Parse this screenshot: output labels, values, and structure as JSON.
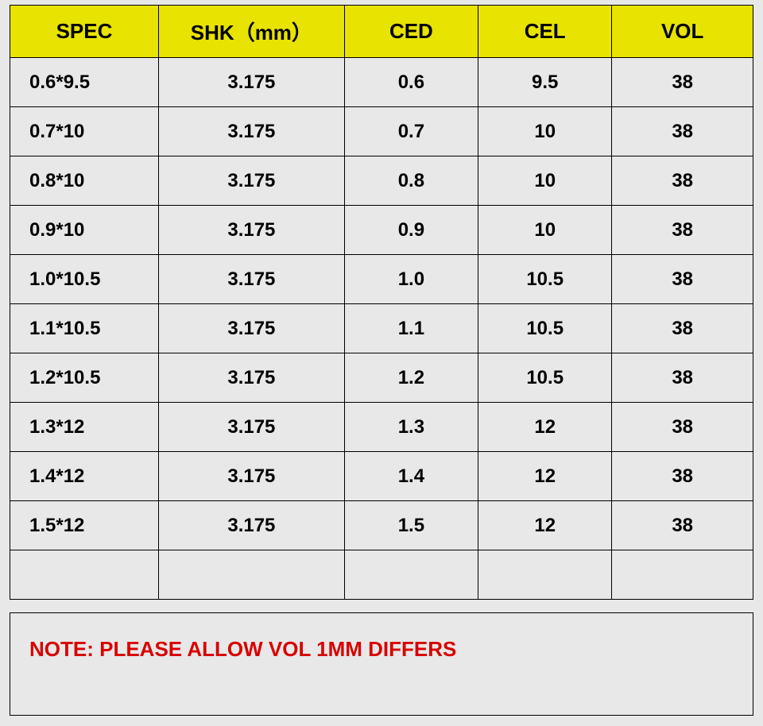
{
  "table": {
    "type": "table",
    "header_bg": "#e8e300",
    "body_bg": "#e8e8e8",
    "border_color": "#000000",
    "header_fontsize": 26,
    "cell_fontsize": 24,
    "font_weight": "bold",
    "columns": [
      "SPEC",
      "SHK（mm）",
      "CED",
      "CEL",
      "VOL"
    ],
    "column_widths_pct": [
      20,
      25,
      18,
      18,
      19
    ],
    "rows": [
      [
        "0.6*9.5",
        "3.175",
        "0.6",
        "9.5",
        "38"
      ],
      [
        "0.7*10",
        "3.175",
        "0.7",
        "10",
        "38"
      ],
      [
        "0.8*10",
        "3.175",
        "0.8",
        "10",
        "38"
      ],
      [
        "0.9*10",
        "3.175",
        "0.9",
        "10",
        "38"
      ],
      [
        "1.0*10.5",
        "3.175",
        "1.0",
        "10.5",
        "38"
      ],
      [
        "1.1*10.5",
        "3.175",
        "1.1",
        "10.5",
        "38"
      ],
      [
        "1.2*10.5",
        "3.175",
        "1.2",
        "10.5",
        "38"
      ],
      [
        "1.3*12",
        "3.175",
        "1.3",
        "12",
        "38"
      ],
      [
        "1.4*12",
        "3.175",
        "1.4",
        "12",
        "38"
      ],
      [
        "1.5*12",
        "3.175",
        "1.5",
        "12",
        "38"
      ],
      [
        "",
        "",
        "",
        "",
        ""
      ]
    ]
  },
  "note": {
    "text": "NOTE:  PLEASE ALLOW VOL 1MM DIFFERS",
    "color": "#d80000",
    "fontsize": 26,
    "font_weight": "bold",
    "border_color": "#000000",
    "bg_color": "#e8e8e8"
  }
}
